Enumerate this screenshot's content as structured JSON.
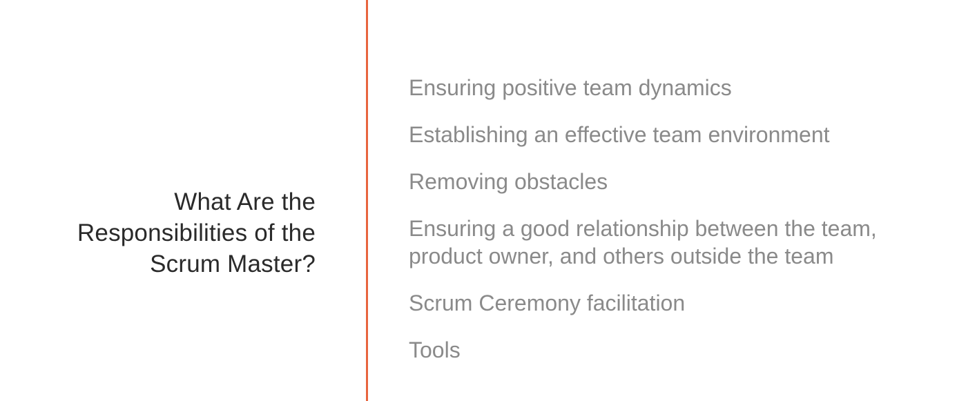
{
  "slide": {
    "title_lines": [
      "What Are the",
      "Responsibilities of the",
      "Scrum Master?"
    ],
    "items": [
      "Ensuring positive team dynamics",
      "Establishing an effective team environment",
      "Removing obstacles",
      "Ensuring a good relationship between the team, product owner, and others outside the team",
      "Scrum Ceremony facilitation",
      "Tools"
    ],
    "colors": {
      "divider": "#e8643e",
      "title": "#2a2a2a",
      "items": "#8a8a8a",
      "background": "#ffffff"
    }
  }
}
